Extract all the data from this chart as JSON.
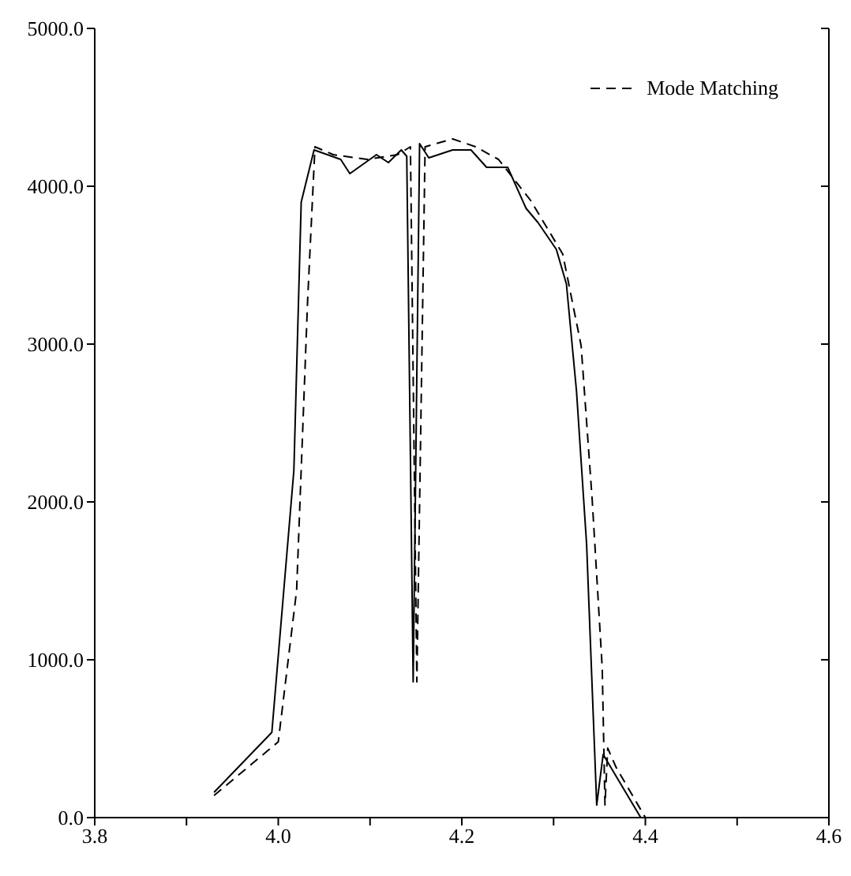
{
  "chart_data": {
    "type": "line",
    "legend": "top right",
    "marker": "none",
    "grid": false,
    "xlim": [
      3.8,
      4.6
    ],
    "xticks": [
      {
        "value": 3.8,
        "label": "3.8"
      },
      {
        "value": 3.9,
        "label": null
      },
      {
        "value": 4.0,
        "label": "4.0"
      },
      {
        "value": 4.1,
        "label": null
      },
      {
        "value": 4.2,
        "label": "4.2"
      },
      {
        "value": 4.3,
        "label": null
      },
      {
        "value": 4.4,
        "label": "4.4"
      },
      {
        "value": 4.5,
        "label": null
      },
      {
        "value": 4.6,
        "label": "4.6"
      }
    ],
    "ylim": [
      0,
      5000
    ],
    "yticks": [
      {
        "value": 0,
        "label": "0.0"
      },
      {
        "value": 1000,
        "label": "1000.0"
      },
      {
        "value": 2000,
        "label": "2000.0"
      },
      {
        "value": 3000,
        "label": "3000.0"
      },
      {
        "value": 4000,
        "label": "4000.0"
      },
      {
        "value": 5000,
        "label": "5000.0"
      }
    ],
    "series": [
      {
        "color": "#000000",
        "line_style": "solid",
        "x": [
          3.93,
          3.993,
          4.017,
          4.025,
          4.039,
          4.068,
          4.078,
          4.107,
          4.12,
          4.134,
          4.14,
          4.147,
          4.154,
          4.164,
          4.19,
          4.21,
          4.227,
          4.25,
          4.27,
          4.283,
          4.303,
          4.314,
          4.325,
          4.336,
          4.347,
          4.354,
          4.395
        ],
        "values": [
          160,
          540,
          2200,
          3900,
          4230,
          4170,
          4080,
          4200,
          4150,
          4230,
          4190,
          860,
          4270,
          4180,
          4230,
          4230,
          4120,
          4120,
          3860,
          3770,
          3600,
          3380,
          2700,
          1730,
          80,
          400,
          0
        ]
      },
      {
        "name": "Mode Matching",
        "color": "#000000",
        "line_style": "dashed",
        "x": [
          3.93,
          4.0,
          4.02,
          4.032,
          4.04,
          4.06,
          4.097,
          4.13,
          4.144,
          4.151,
          4.16,
          4.19,
          4.215,
          4.24,
          4.275,
          4.31,
          4.33,
          4.342,
          4.353,
          4.356,
          4.359,
          4.368,
          4.4
        ],
        "values": [
          140,
          480,
          1440,
          3280,
          4250,
          4200,
          4170,
          4200,
          4250,
          860,
          4250,
          4300,
          4250,
          4170,
          3910,
          3570,
          2990,
          2020,
          950,
          80,
          440,
          320,
          0
        ]
      }
    ]
  }
}
